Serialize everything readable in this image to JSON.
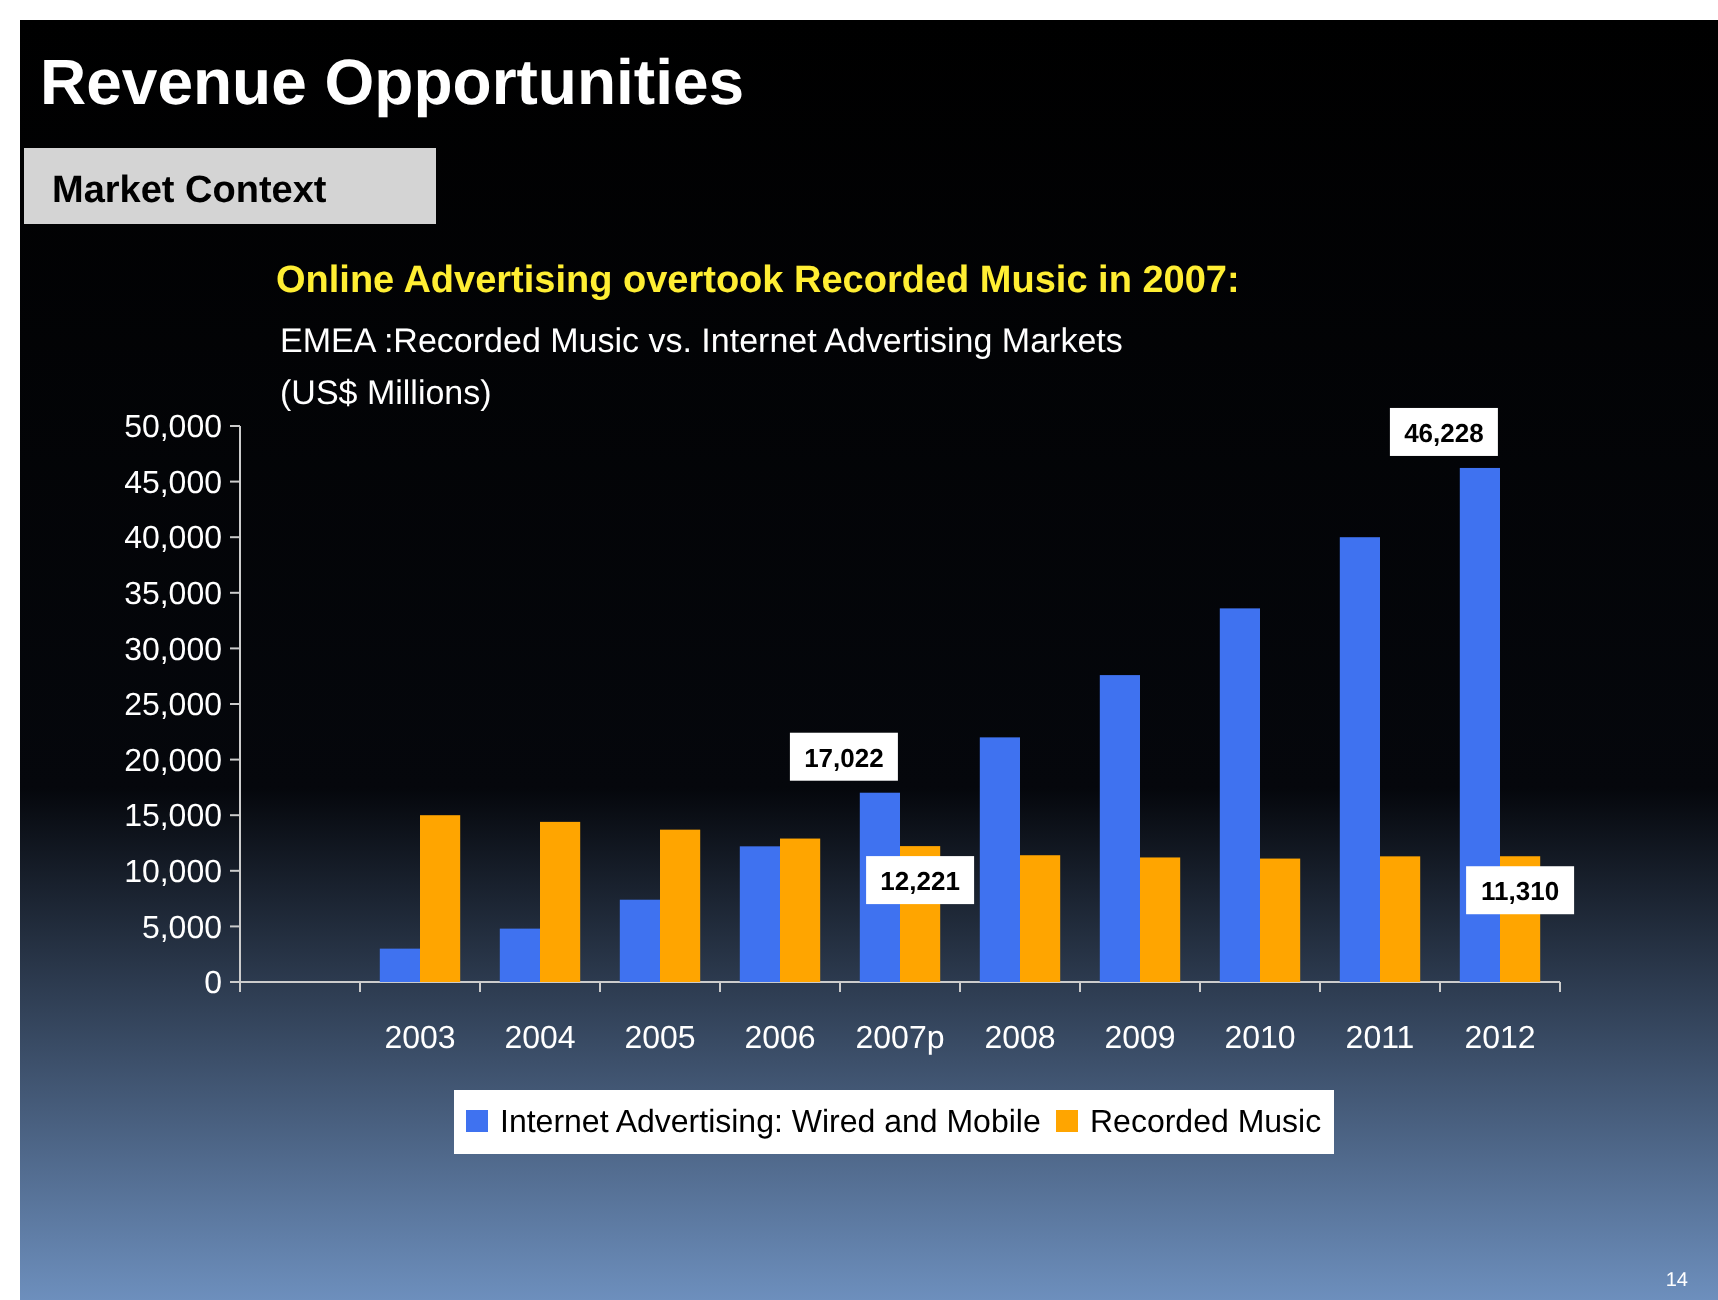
{
  "chart_data": {
    "type": "bar",
    "title": "Revenue Opportunities",
    "subtitle": "Market Context",
    "annotations": [
      "Online Advertising overtook Recorded Music in 2007:",
      "EMEA :Recorded Music vs. Internet Advertising Markets",
      "14"
    ],
    "ylabel": "(US$ Millions)",
    "categories": [
      null,
      "2003",
      "2004",
      "2005",
      "2006",
      "2007p",
      "2008",
      "2009",
      "2010",
      "2011",
      "2012"
    ],
    "series": [
      {
        "name": "Internet Advertising: Wired and Mobile",
        "color": "#3f72f0",
        "values": [
          null,
          3000,
          4800,
          7400,
          12200,
          17022,
          22000,
          27600,
          33600,
          40000,
          46228
        ],
        "value_labels": [
          null,
          null,
          null,
          null,
          null,
          "17,022",
          null,
          null,
          null,
          null,
          "46,228"
        ]
      },
      {
        "name": "Recorded Music",
        "color": "#ffa500",
        "values": [
          null,
          15000,
          14400,
          13700,
          12900,
          12221,
          11400,
          11200,
          11100,
          11300,
          11310
        ],
        "value_labels": [
          null,
          null,
          null,
          null,
          null,
          "12,221",
          null,
          null,
          null,
          null,
          "11,310"
        ]
      }
    ],
    "ylim": [
      0,
      50000
    ],
    "yticks": [
      {
        "value": 0,
        "label": "0"
      },
      {
        "value": 5000,
        "label": "5,000"
      },
      {
        "value": 10000,
        "label": "10,000"
      },
      {
        "value": 15000,
        "label": "15,000"
      },
      {
        "value": 20000,
        "label": "20,000"
      },
      {
        "value": 25000,
        "label": "25,000"
      },
      {
        "value": 30000,
        "label": "30,000"
      },
      {
        "value": 35000,
        "label": "35,000"
      },
      {
        "value": 40000,
        "label": "40,000"
      },
      {
        "value": 45000,
        "label": "45,000"
      },
      {
        "value": 50000,
        "label": "50,000"
      }
    ],
    "grid": false,
    "legend": "bottom"
  }
}
